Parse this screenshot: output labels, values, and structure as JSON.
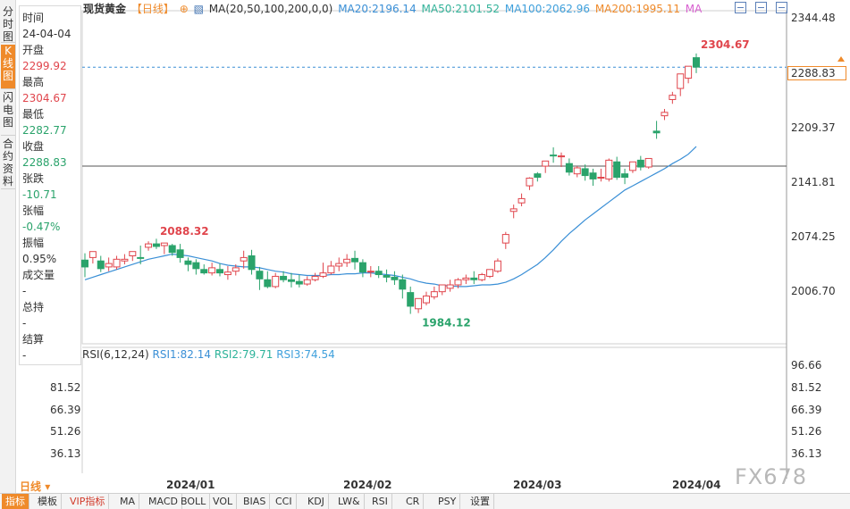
{
  "left_tabs": [
    "分时图",
    "K线图",
    "闪电图",
    "合约资料"
  ],
  "info_panel": {
    "rows": [
      {
        "label": "时间",
        "value": "24-04-04",
        "color": "dark"
      },
      {
        "label": "开盘",
        "value": "2299.92",
        "color": "red"
      },
      {
        "label": "最高",
        "value": "2304.67",
        "color": "red"
      },
      {
        "label": "最低",
        "value": "2282.77",
        "color": "green"
      },
      {
        "label": "收盘",
        "value": "2288.83",
        "color": "green"
      },
      {
        "label": "张跌",
        "value": "-10.71",
        "color": "green"
      },
      {
        "label": "张幅",
        "value": "-0.47%",
        "color": "green"
      },
      {
        "label": "振幅",
        "value": "0.95%",
        "color": "dark"
      },
      {
        "label": "成交量",
        "value": "-",
        "color": "dark"
      },
      {
        "label": "总持",
        "value": "-",
        "color": "dark"
      },
      {
        "label": "结算",
        "value": "-",
        "color": "dark"
      }
    ]
  },
  "header": {
    "title": "现货黄金",
    "period": "【日线】",
    "ma_label": "MA(20,50,100,200,0,0)",
    "ma20": "MA20:2196.14",
    "ma50": "MA50:2101.52",
    "ma100": "MA100:2062.96",
    "ma200": "MA200:1995.11",
    "ma_extra": "MA"
  },
  "rsi_legend": {
    "label": "RSI(6,12,24)",
    "rsi1": "RSI1:82.14",
    "rsi2": "RSI2:79.71",
    "rsi3": "RSI3:74.54"
  },
  "price_axis": [
    "2344.48",
    "2288.83",
    "2209.37",
    "2141.81",
    "2074.25",
    "2006.70"
  ],
  "rsi_axis_right": [
    "96.66",
    "81.52",
    "66.39",
    "51.26",
    "36.13"
  ],
  "rsi_axis_left": [
    "96.66",
    "81.52",
    "66.39",
    "51.26",
    "36.13"
  ],
  "x_axis": [
    "2024/01",
    "2024/02",
    "2024/03",
    "2024/04"
  ],
  "period_select": "日线",
  "bottom_toolbar": [
    "指标",
    "模板",
    "VIP指标",
    "MA",
    "MACD",
    "BOLL",
    "VOL",
    "BIAS",
    "CCI",
    "KDJ",
    "LW&",
    "RSI",
    "CR",
    "PSY",
    "设置"
  ],
  "watermark": "FX678",
  "annotations": {
    "high": "2304.67",
    "mid_high": "2088.32",
    "low": "1984.12"
  },
  "colors": {
    "up": "#e0454c",
    "down": "#2aa36b",
    "ma20": "#3a8fd6",
    "ma50": "#33b39a",
    "ma100": "#3fa0dc",
    "ma200": "#ef8a2a",
    "accent": "#ef8a2a"
  },
  "chart_data": {
    "type": "candlestick",
    "title": "现货黄金",
    "y_range": [
      1965,
      2355
    ],
    "current_price": 2288.83,
    "candles": [
      [
        2063,
        2071,
        2055,
        2043
      ],
      [
        2066,
        2062,
        2073,
        2059
      ],
      [
        2062,
        2068,
        2053,
        2049
      ],
      [
        2055,
        2066,
        2059,
        2050
      ],
      [
        2055,
        2068,
        2064,
        2052
      ],
      [
        2062,
        2070,
        2064,
        2058
      ],
      [
        2068,
        2072,
        2073,
        2062
      ],
      [
        2066,
        2080,
        2065,
        2058
      ],
      [
        2078,
        2085,
        2082,
        2074
      ],
      [
        2082,
        2088,
        2079,
        2076
      ],
      [
        2080,
        2079,
        2083,
        2070
      ],
      [
        2080,
        2082,
        2072,
        2068
      ],
      [
        2075,
        2082,
        2066,
        2060
      ],
      [
        2062,
        2066,
        2058,
        2050
      ],
      [
        2060,
        2064,
        2053,
        2046
      ],
      [
        2052,
        2058,
        2048,
        2046
      ],
      [
        2048,
        2060,
        2054,
        2045
      ],
      [
        2052,
        2059,
        2048,
        2044
      ],
      [
        2046,
        2056,
        2049,
        2040
      ],
      [
        2050,
        2058,
        2054,
        2045
      ],
      [
        2062,
        2074,
        2066,
        2053
      ],
      [
        2068,
        2075,
        2052,
        2046
      ],
      [
        2050,
        2055,
        2041,
        2028
      ],
      [
        2040,
        2050,
        2032,
        2030
      ],
      [
        2032,
        2048,
        2044,
        2030
      ],
      [
        2044,
        2050,
        2040,
        2037
      ],
      [
        2040,
        2048,
        2038,
        2031
      ],
      [
        2038,
        2046,
        2035,
        2031
      ],
      [
        2035,
        2044,
        2040,
        2033
      ],
      [
        2040,
        2048,
        2044,
        2038
      ],
      [
        2044,
        2060,
        2048,
        2042
      ],
      [
        2048,
        2062,
        2056,
        2046
      ],
      [
        2056,
        2066,
        2059,
        2050
      ],
      [
        2060,
        2070,
        2064,
        2055
      ],
      [
        2065,
        2074,
        2061,
        2052
      ],
      [
        2060,
        2064,
        2049,
        2043
      ],
      [
        2049,
        2056,
        2050,
        2043
      ],
      [
        2050,
        2056,
        2046,
        2042
      ],
      [
        2045,
        2052,
        2043,
        2037
      ],
      [
        2043,
        2050,
        2040,
        2034
      ],
      [
        2040,
        2046,
        2029,
        2018
      ],
      [
        2025,
        2032,
        2009,
        2000
      ],
      [
        2006,
        2016,
        2018,
        2001
      ],
      [
        2013,
        2026,
        2021,
        2010
      ],
      [
        2020,
        2032,
        2026,
        2017
      ],
      [
        2026,
        2034,
        2034,
        2022
      ],
      [
        2030,
        2040,
        2034,
        2026
      ],
      [
        2034,
        2042,
        2040,
        2030
      ],
      [
        2040,
        2046,
        2042,
        2035
      ],
      [
        2042,
        2050,
        2040,
        2035
      ],
      [
        2040,
        2048,
        2046,
        2038
      ],
      [
        2044,
        2052,
        2052,
        2042
      ],
      [
        2050,
        2065,
        2062,
        2048
      ],
      [
        2083,
        2096,
        2093,
        2076
      ],
      [
        2120,
        2128,
        2123,
        2112
      ],
      [
        2130,
        2141,
        2135,
        2126
      ],
      [
        2150,
        2160,
        2159,
        2145
      ],
      [
        2164,
        2166,
        2160,
        2155
      ],
      [
        2173,
        2178,
        2179,
        2165
      ],
      [
        2186,
        2195,
        2185,
        2177
      ],
      [
        2185,
        2189,
        2185,
        2172
      ],
      [
        2176,
        2182,
        2166,
        2162
      ],
      [
        2164,
        2173,
        2171,
        2160
      ],
      [
        2170,
        2175,
        2162,
        2156
      ],
      [
        2165,
        2170,
        2158,
        2150
      ],
      [
        2160,
        2170,
        2160,
        2155
      ],
      [
        2158,
        2182,
        2180,
        2155
      ],
      [
        2178,
        2184,
        2160,
        2157
      ],
      [
        2164,
        2170,
        2160,
        2152
      ],
      [
        2168,
        2175,
        2178,
        2165
      ],
      [
        2180,
        2185,
        2172,
        2168
      ],
      [
        2172,
        2176,
        2182,
        2170
      ],
      [
        2214,
        2226,
        2212,
        2205
      ],
      [
        2232,
        2240,
        2236,
        2227
      ],
      [
        2251,
        2260,
        2256,
        2246
      ],
      [
        2264,
        2275,
        2281,
        2255
      ],
      [
        2276,
        2290,
        2290,
        2270
      ],
      [
        2300,
        2305,
        2289,
        2282
      ]
    ],
    "ma_series": [
      {
        "name": "MA20",
        "values": [
          2040,
          2043,
          2046,
          2049,
          2052,
          2055,
          2058,
          2061,
          2064,
          2066,
          2068,
          2070,
          2069,
          2068,
          2066,
          2064,
          2062,
          2059,
          2057,
          2056,
          2055,
          2055,
          2054,
          2052,
          2050,
          2049,
          2047,
          2046,
          2045,
          2045,
          2045,
          2046,
          2046,
          2047,
          2047,
          2048,
          2048,
          2047,
          2046,
          2045,
          2043,
          2041,
          2038,
          2036,
          2035,
          2033,
          2033,
          2032,
          2032,
          2033,
          2034,
          2034,
          2035,
          2037,
          2041,
          2046,
          2052,
          2058,
          2066,
          2075,
          2085,
          2094,
          2102,
          2110,
          2117,
          2124,
          2131,
          2138,
          2145,
          2150,
          2155,
          2160,
          2165,
          2170,
          2176,
          2181,
          2187,
          2196
        ]
      }
    ]
  }
}
